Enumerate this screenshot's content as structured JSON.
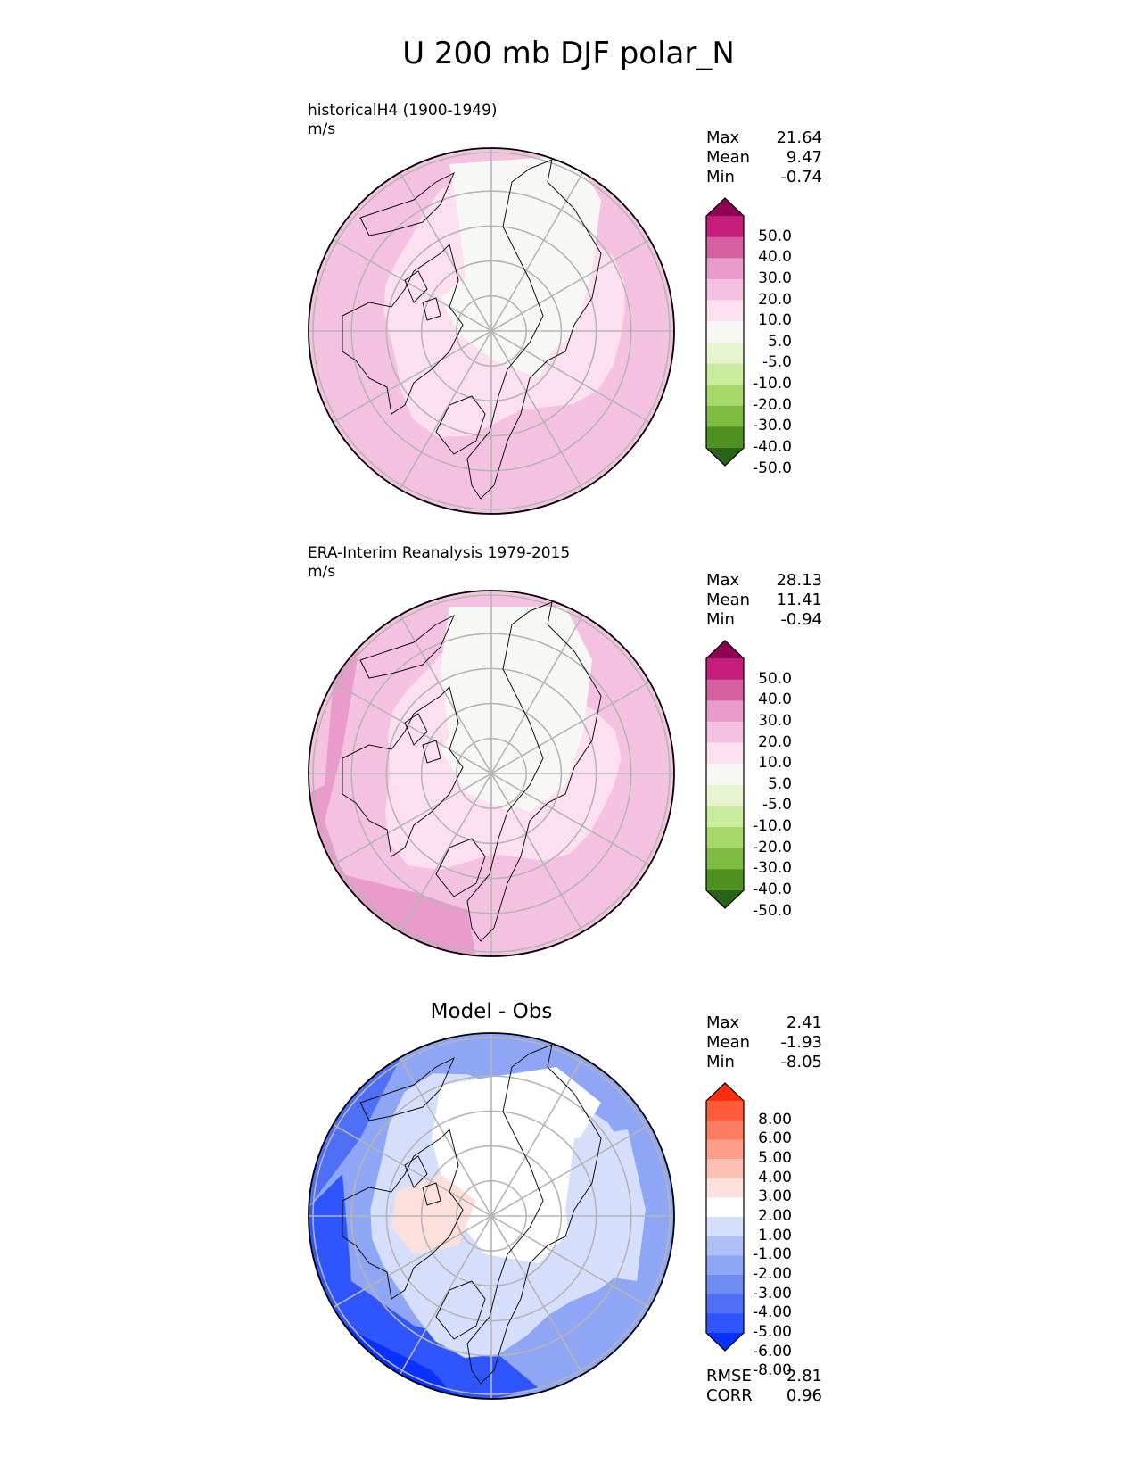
{
  "title": "U 200 mb DJF polar_N",
  "colors": {
    "pink_scale": [
      "#276419",
      "#4d9221",
      "#7fbc41",
      "#a6d96a",
      "#c9eca0",
      "#e6f5d0",
      "#f7f7f6",
      "#fde0ef",
      "#f4c2e0",
      "#e99ccb",
      "#d65fa2",
      "#c51b7d",
      "#8e0152"
    ],
    "diff_scale": [
      "#0a31ff",
      "#2f55ff",
      "#4f70f6",
      "#6f8cf3",
      "#8ea6f5",
      "#aebff7",
      "#d5defb",
      "#ffffff",
      "#fde0db",
      "#fcc0b3",
      "#fc9e8a",
      "#fd7b60",
      "#ff5a3a",
      "#ff2f0e"
    ]
  },
  "panels": [
    {
      "id": "test",
      "label_line1": "historicalH4 (1900-1949)",
      "label_line2": "m/s",
      "stats": {
        "max_label": "Max",
        "max": "21.64",
        "mean_label": "Mean",
        "mean": "9.47",
        "min_label": "Min",
        "min": "-0.74"
      },
      "colorbar_ticks": [
        "50.0",
        "40.0",
        "30.0",
        "20.0",
        "10.0",
        "5.0",
        "-5.0",
        "-10.0",
        "-20.0",
        "-30.0",
        "-40.0",
        "-50.0"
      ]
    },
    {
      "id": "reference",
      "label_line1": "ERA-Interim Reanalysis 1979-2015",
      "label_line2": "m/s",
      "stats": {
        "max_label": "Max",
        "max": "28.13",
        "mean_label": "Mean",
        "mean": "11.41",
        "min_label": "Min",
        "min": "-0.94"
      },
      "colorbar_ticks": [
        "50.0",
        "40.0",
        "30.0",
        "20.0",
        "10.0",
        "5.0",
        "-5.0",
        "-10.0",
        "-20.0",
        "-30.0",
        "-40.0",
        "-50.0"
      ]
    },
    {
      "id": "diff",
      "title": "Model - Obs",
      "stats": {
        "max_label": "Max",
        "max": "2.41",
        "mean_label": "Mean",
        "mean": "-1.93",
        "min_label": "Min",
        "min": "-8.05"
      },
      "colorbar_ticks": [
        "8.00",
        "6.00",
        "5.00",
        "4.00",
        "3.00",
        "2.00",
        "1.00",
        "-1.00",
        "-2.00",
        "-3.00",
        "-4.00",
        "-5.00",
        "-6.00",
        "-8.00"
      ],
      "metrics": {
        "rmse_label": "RMSE",
        "rmse": "2.81",
        "corr_label": "CORR",
        "corr": "0.96"
      }
    }
  ]
}
